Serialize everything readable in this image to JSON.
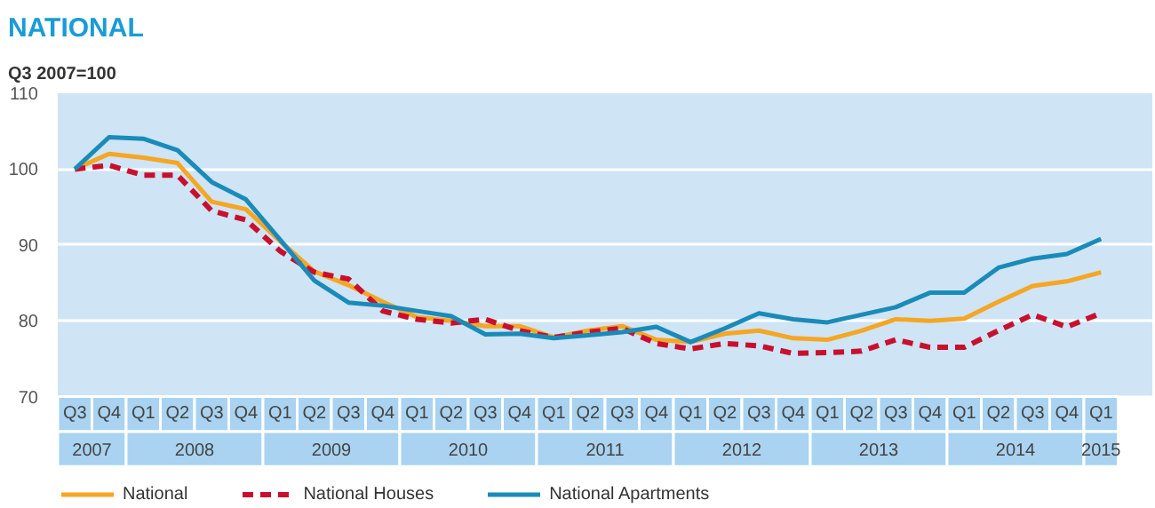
{
  "chart_data": {
    "type": "line",
    "title": "NATIONAL",
    "ylabel": "Q3 2007=100",
    "categories": [
      "Q3",
      "Q4",
      "Q1",
      "Q2",
      "Q3",
      "Q4",
      "Q1",
      "Q2",
      "Q3",
      "Q4",
      "Q1",
      "Q2",
      "Q3",
      "Q4",
      "Q1",
      "Q2",
      "Q3",
      "Q4",
      "Q1",
      "Q2",
      "Q3",
      "Q4",
      "Q1",
      "Q2",
      "Q3",
      "Q4",
      "Q1",
      "Q2",
      "Q3",
      "Q4",
      "Q1"
    ],
    "annotations": [
      "2007",
      "2008",
      "2009",
      "2010",
      "2011",
      "2012",
      "2013",
      "2014",
      "2015"
    ],
    "series": [
      {
        "name": "National",
        "color": "#f5a623",
        "line_style": "solid",
        "values": [
          100,
          102,
          101.5,
          100.8,
          95.7,
          94.7,
          90.5,
          86.5,
          84.7,
          82.5,
          80.5,
          80,
          79.3,
          79.3,
          77.8,
          78.7,
          79.3,
          77.5,
          77.2,
          78.3,
          78.7,
          77.7,
          77.5,
          78.7,
          80.2,
          80,
          80.3,
          82.5,
          84.6,
          85.2,
          86.4
        ]
      },
      {
        "name": "National Houses",
        "color": "#c8102e",
        "line_style": "dashed",
        "values": [
          100,
          100.5,
          99.2,
          99.2,
          94.5,
          93.3,
          89.2,
          86.4,
          85.5,
          81.3,
          80.2,
          79.7,
          80.2,
          78.7,
          77.8,
          78.5,
          79,
          77,
          76.3,
          77,
          76.7,
          75.7,
          75.8,
          76,
          77.5,
          76.5,
          76.5,
          78.7,
          80.8,
          79.2,
          81
        ]
      },
      {
        "name": "National Apartments",
        "color": "#1a8bb9",
        "line_style": "solid",
        "values": [
          100,
          104.2,
          104,
          102.5,
          98.3,
          96,
          90.7,
          85.3,
          82.4,
          82,
          81.3,
          80.6,
          78.2,
          78.3,
          77.7,
          78.1,
          78.5,
          79.2,
          77.2,
          79,
          81,
          80.2,
          79.8,
          80.8,
          81.8,
          83.7,
          83.7,
          87,
          88.2,
          88.8,
          90.8
        ]
      }
    ],
    "ylim": [
      70,
      110
    ],
    "yticks": [
      70,
      80,
      90,
      100,
      110
    ],
    "grid": "y",
    "legend": "bottom",
    "marker": "none"
  }
}
